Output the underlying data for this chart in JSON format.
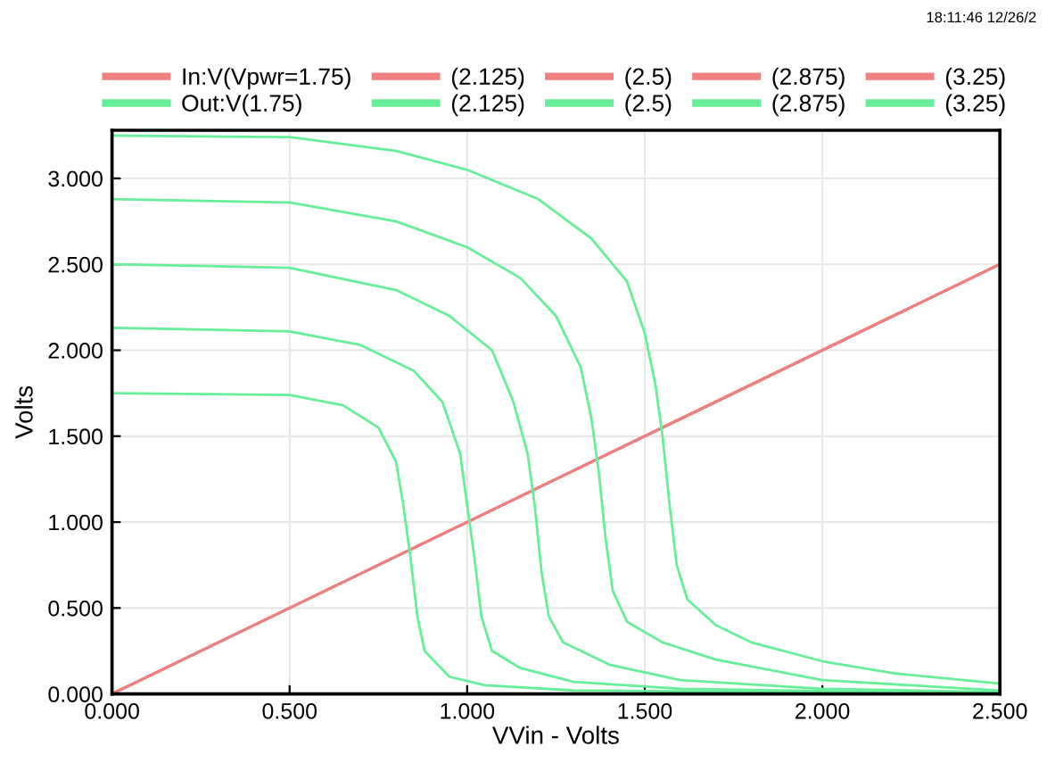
{
  "chart_data": {
    "type": "line",
    "xlabel": "VVin - Volts",
    "ylabel": "Volts",
    "xlim": [
      0,
      2.5
    ],
    "ylim": [
      0,
      3.28
    ],
    "xticks": [
      {
        "value": 0,
        "label": "0.000"
      },
      {
        "value": 0.5,
        "label": "0.500"
      },
      {
        "value": 1,
        "label": "1.000"
      },
      {
        "value": 1.5,
        "label": "1.500"
      },
      {
        "value": 2,
        "label": "2.000"
      },
      {
        "value": 2.5,
        "label": "2.500"
      }
    ],
    "yticks": [
      {
        "value": 0,
        "label": "0.000"
      },
      {
        "value": 0.5,
        "label": "0.500"
      },
      {
        "value": 1,
        "label": "1.000"
      },
      {
        "value": 1.5,
        "label": "1.500"
      },
      {
        "value": 2,
        "label": "2.000"
      },
      {
        "value": 2.5,
        "label": "2.500"
      },
      {
        "value": 3,
        "label": "3.000"
      }
    ],
    "grid": true,
    "legend": "top",
    "annotations": [
      "18:11:46 12/26/2"
    ],
    "series": [
      {
        "name": "In:V(Vpwr=1.75)",
        "color": "#f08080",
        "x": [
          0,
          2.5
        ],
        "values": [
          0,
          2.5
        ]
      },
      {
        "name": "(2.125)",
        "color": "#f08080",
        "x": [
          0,
          2.5
        ],
        "values": [
          0,
          2.5
        ]
      },
      {
        "name": "(2.5)",
        "color": "#f08080",
        "x": [
          0,
          2.5
        ],
        "values": [
          0,
          2.5
        ]
      },
      {
        "name": "(2.875)",
        "color": "#f08080",
        "x": [
          0,
          2.5
        ],
        "values": [
          0,
          2.5
        ]
      },
      {
        "name": "(3.25)",
        "color": "#f08080",
        "x": [
          0,
          2.5
        ],
        "values": [
          0,
          2.5
        ]
      },
      {
        "name": "Out:V(1.75)",
        "color": "#66ee99",
        "x": [
          0,
          0.5,
          0.65,
          0.75,
          0.8,
          0.82,
          0.84,
          0.86,
          0.88,
          0.95,
          1.05,
          1.3,
          2.5
        ],
        "values": [
          1.75,
          1.74,
          1.68,
          1.55,
          1.35,
          1.1,
          0.8,
          0.45,
          0.25,
          0.1,
          0.05,
          0.02,
          0.0
        ]
      },
      {
        "name": "(2.125)",
        "color": "#66ee99",
        "x": [
          0,
          0.5,
          0.7,
          0.85,
          0.93,
          0.98,
          1.0,
          1.02,
          1.04,
          1.07,
          1.15,
          1.3,
          1.6,
          2.5
        ],
        "values": [
          2.13,
          2.11,
          2.03,
          1.88,
          1.7,
          1.4,
          1.1,
          0.8,
          0.45,
          0.25,
          0.15,
          0.07,
          0.03,
          0.0
        ]
      },
      {
        "name": "(2.5)",
        "color": "#66ee99",
        "x": [
          0,
          0.5,
          0.8,
          0.95,
          1.07,
          1.13,
          1.17,
          1.19,
          1.21,
          1.23,
          1.27,
          1.4,
          1.6,
          2.0,
          2.5
        ],
        "values": [
          2.5,
          2.48,
          2.35,
          2.2,
          2.0,
          1.7,
          1.4,
          1.1,
          0.7,
          0.45,
          0.3,
          0.17,
          0.08,
          0.03,
          0.01
        ]
      },
      {
        "name": "(2.875)",
        "color": "#66ee99",
        "x": [
          0,
          0.5,
          0.8,
          1.0,
          1.15,
          1.25,
          1.32,
          1.35,
          1.37,
          1.39,
          1.41,
          1.45,
          1.55,
          1.7,
          2.0,
          2.5
        ],
        "values": [
          2.88,
          2.86,
          2.75,
          2.6,
          2.42,
          2.2,
          1.9,
          1.6,
          1.3,
          0.9,
          0.6,
          0.42,
          0.3,
          0.2,
          0.08,
          0.02
        ]
      },
      {
        "name": "(3.25)",
        "color": "#66ee99",
        "x": [
          0,
          0.5,
          0.8,
          1.0,
          1.2,
          1.35,
          1.45,
          1.5,
          1.53,
          1.55,
          1.57,
          1.59,
          1.62,
          1.7,
          1.8,
          2.0,
          2.2,
          2.5
        ],
        "values": [
          3.25,
          3.24,
          3.16,
          3.05,
          2.88,
          2.65,
          2.4,
          2.1,
          1.8,
          1.5,
          1.1,
          0.75,
          0.55,
          0.4,
          0.3,
          0.19,
          0.12,
          0.06
        ]
      }
    ]
  }
}
